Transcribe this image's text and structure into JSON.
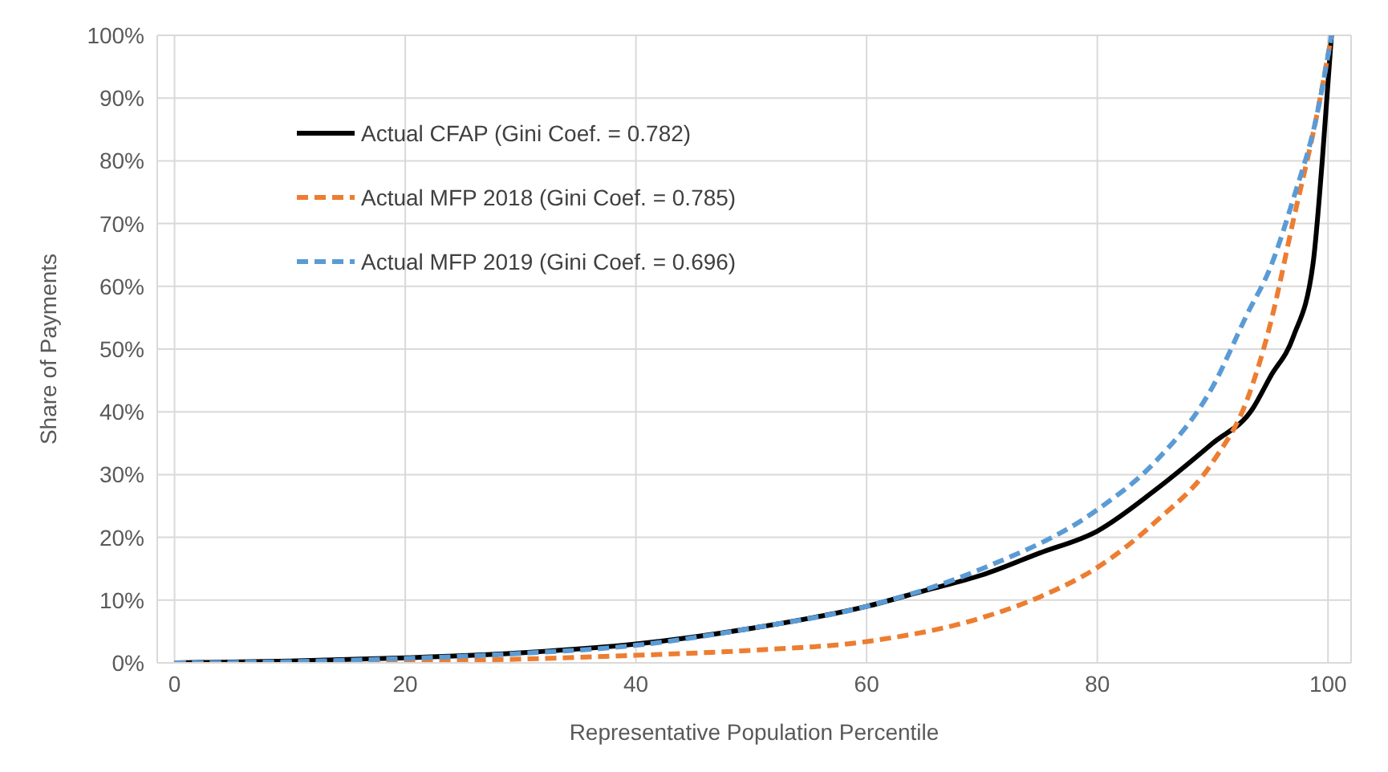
{
  "chart_data": {
    "type": "line",
    "xlabel": "Representative Population Percentile",
    "ylabel": "Share of Payments",
    "xlim": [
      -1.5,
      102
    ],
    "xticks": [
      0,
      20,
      40,
      60,
      80,
      100
    ],
    "ylim": [
      0,
      100
    ],
    "yticks": [
      {
        "value": 0,
        "label": "0%"
      },
      {
        "value": 10,
        "label": "10%"
      },
      {
        "value": 20,
        "label": "20%"
      },
      {
        "value": 30,
        "label": "30%"
      },
      {
        "value": 40,
        "label": "40%"
      },
      {
        "value": 50,
        "label": "50%"
      },
      {
        "value": 60,
        "label": "60%"
      },
      {
        "value": 70,
        "label": "70%"
      },
      {
        "value": 80,
        "label": "80%"
      },
      {
        "value": 90,
        "label": "90%"
      },
      {
        "value": 100,
        "label": "100%"
      }
    ],
    "grid": true,
    "legend": "top left",
    "marker": "none",
    "series": [
      {
        "name": "Actual CFAP (Gini Coef. = 0.782)",
        "color": "#000000",
        "line_style": "solid",
        "x": [
          0,
          10,
          20,
          30,
          40,
          50,
          60,
          65,
          70,
          75,
          80,
          85,
          90,
          93.5,
          95,
          97,
          98.7,
          99.5,
          100.3
        ],
        "values": [
          0,
          0.3,
          0.8,
          1.6,
          3,
          5.5,
          9,
          11.5,
          14,
          17.5,
          21,
          27.5,
          35,
          40.6,
          45.6,
          52,
          63.6,
          80,
          100
        ]
      },
      {
        "name": "Actual MFP 2018 (Gini Coef. = 0.785)",
        "color": "#ed7d31",
        "line_style": "dashed",
        "x": [
          0,
          10,
          20,
          30,
          40,
          50,
          60,
          70,
          75,
          80,
          85,
          90,
          93,
          95,
          97,
          99,
          100.3
        ],
        "values": [
          0,
          0,
          0.2,
          0.6,
          1.2,
          2,
          3.4,
          7.2,
          10.5,
          15.2,
          22.4,
          32,
          42,
          54,
          70.6,
          87,
          100
        ]
      },
      {
        "name": "Actual MFP 2019 (Gini Coef. = 0.696)",
        "color": "#5b9bd5",
        "line_style": "dashed",
        "x": [
          0,
          10,
          20,
          30,
          40,
          50,
          60,
          70,
          80,
          85,
          90,
          93,
          95,
          97,
          99,
          100.3
        ],
        "values": [
          0,
          0.2,
          0.7,
          1.5,
          2.8,
          5.5,
          9,
          15,
          24.4,
          32,
          44,
          55.6,
          63,
          74,
          87,
          100
        ]
      }
    ]
  }
}
